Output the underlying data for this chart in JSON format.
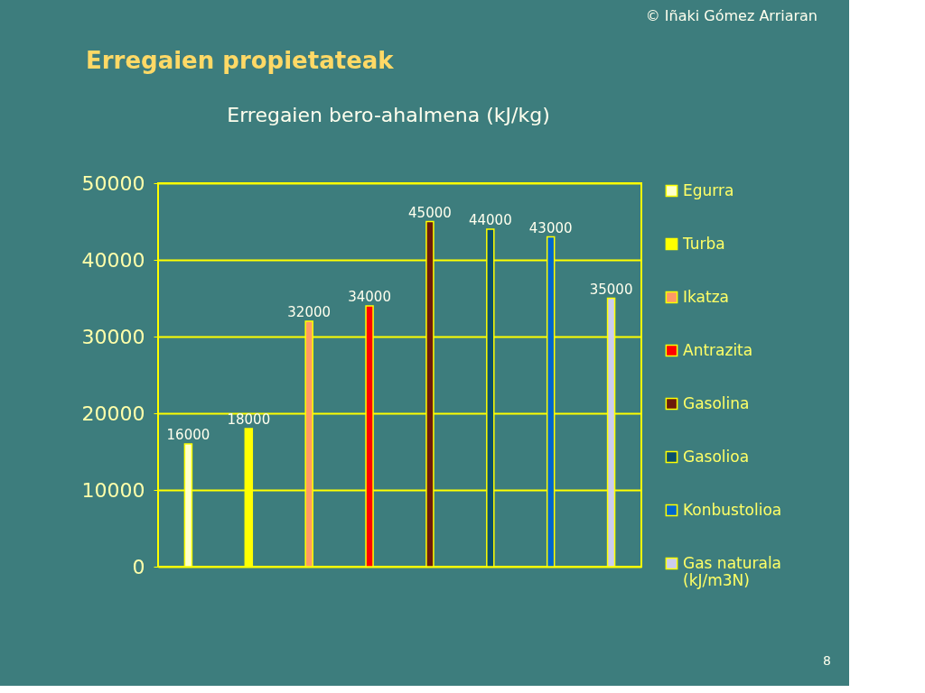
{
  "chart_data": {
    "type": "bar",
    "title": "Erregaien propietateak",
    "subtitle": "Erregaien bero-ahalmena (kJ/kg)",
    "categories": [
      null
    ],
    "series": [
      {
        "name": "Egurra",
        "color": "#ffffcc",
        "values": [
          16000
        ]
      },
      {
        "name": "Turba",
        "color": "#ffff00",
        "values": [
          18000
        ]
      },
      {
        "name": "Ikatza",
        "color": "#ff9966",
        "values": [
          32000
        ]
      },
      {
        "name": "Antrazita",
        "color": "#ff0000",
        "values": [
          34000
        ]
      },
      {
        "name": "Gasolina",
        "color": "#6b1a0a",
        "values": [
          45000
        ]
      },
      {
        "name": "Gasolioa",
        "color": "#0a4f6b",
        "values": [
          44000
        ]
      },
      {
        "name": "Konbustolioa",
        "color": "#0066cc",
        "values": [
          43000
        ]
      },
      {
        "name": "Gas naturala (kJ/m3N)",
        "color": "#ccccee",
        "values": [
          35000
        ]
      }
    ],
    "ylim": [
      0,
      50000
    ],
    "yticks": [
      0,
      10000,
      20000,
      30000,
      40000,
      50000
    ],
    "grid": "y",
    "legend": "right",
    "data_labels": true,
    "annotations": [
      "© Iñaki Gómez Arriaran",
      "8"
    ]
  }
}
